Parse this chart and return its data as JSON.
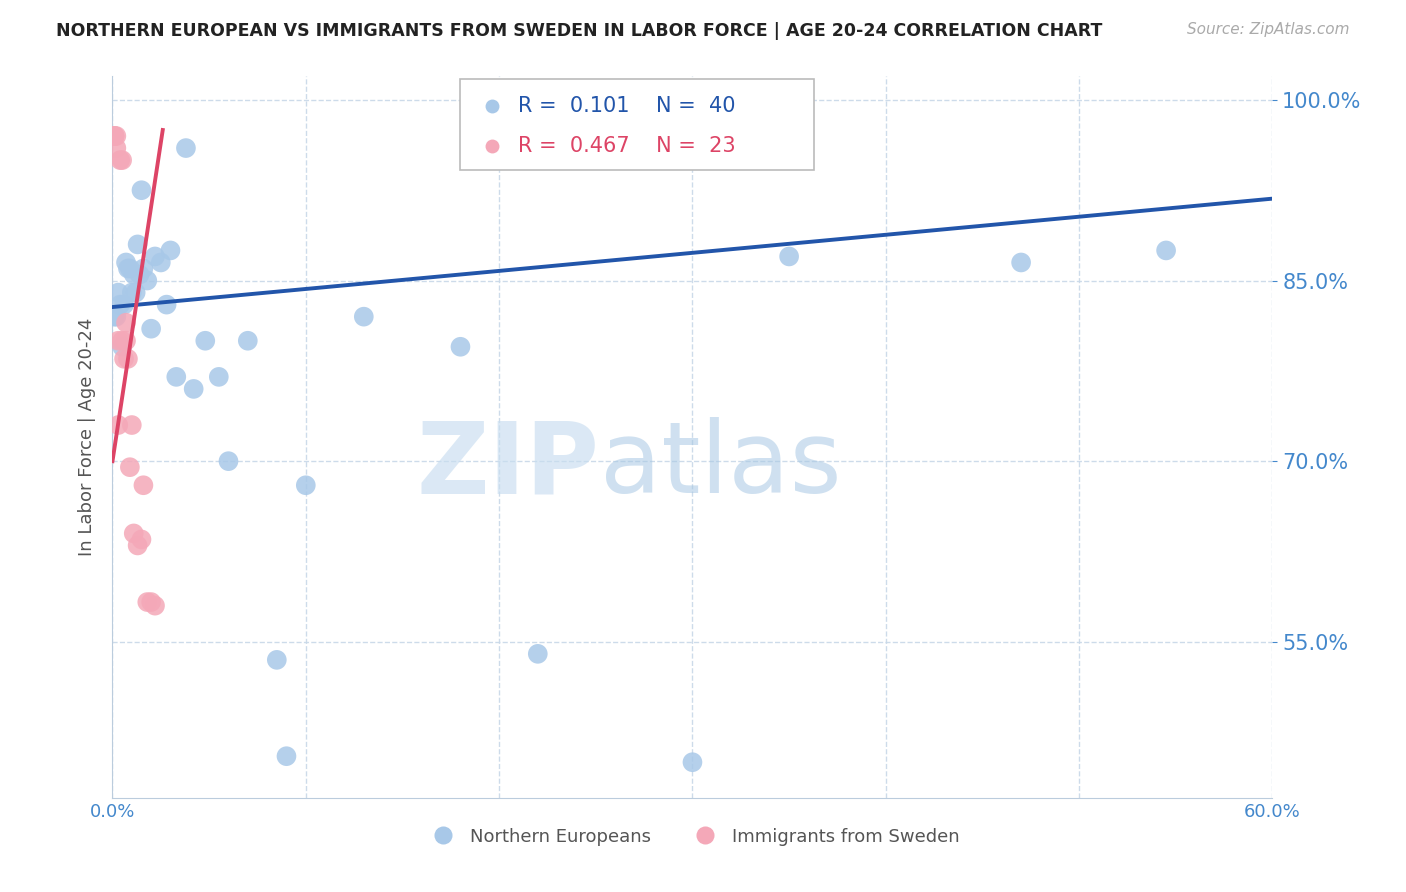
{
  "title": "NORTHERN EUROPEAN VS IMMIGRANTS FROM SWEDEN IN LABOR FORCE | AGE 20-24 CORRELATION CHART",
  "source": "Source: ZipAtlas.com",
  "ylabel": "In Labor Force | Age 20-24",
  "xlim": [
    0.0,
    0.6
  ],
  "ylim": [
    0.42,
    1.02
  ],
  "yticks": [
    0.55,
    0.7,
    0.85,
    1.0
  ],
  "xticks": [
    0.0,
    0.1,
    0.2,
    0.3,
    0.4,
    0.5,
    0.6
  ],
  "blue_R": 0.101,
  "blue_N": 40,
  "pink_R": 0.467,
  "pink_N": 23,
  "blue_color": "#a8c8e8",
  "pink_color": "#f4a8b8",
  "blue_line_color": "#2255aa",
  "pink_line_color": "#dd4466",
  "legend_blue_label": "Northern Europeans",
  "legend_pink_label": "Immigrants from Sweden",
  "watermark_zip": "ZIP",
  "watermark_atlas": "atlas",
  "title_color": "#222222",
  "axis_color": "#4488cc",
  "grid_color": "#c8d8e8",
  "blue_x": [
    0.001,
    0.002,
    0.003,
    0.004,
    0.005,
    0.006,
    0.007,
    0.008,
    0.009,
    0.01,
    0.011,
    0.012,
    0.013,
    0.014,
    0.015,
    0.016,
    0.018,
    0.02,
    0.022,
    0.025,
    0.028,
    0.03,
    0.033,
    0.038,
    0.042,
    0.048,
    0.055,
    0.06,
    0.07,
    0.085,
    0.09,
    0.1,
    0.13,
    0.18,
    0.2,
    0.22,
    0.3,
    0.35,
    0.47,
    0.545
  ],
  "blue_y": [
    0.82,
    0.82,
    0.84,
    0.83,
    0.795,
    0.83,
    0.865,
    0.86,
    0.86,
    0.84,
    0.855,
    0.84,
    0.88,
    0.855,
    0.925,
    0.86,
    0.85,
    0.81,
    0.87,
    0.865,
    0.83,
    0.875,
    0.77,
    0.96,
    0.76,
    0.8,
    0.77,
    0.7,
    0.8,
    0.535,
    0.455,
    0.68,
    0.82,
    0.795,
    0.99,
    0.54,
    0.45,
    0.87,
    0.865,
    0.875
  ],
  "pink_x": [
    0.001,
    0.001,
    0.001,
    0.002,
    0.002,
    0.003,
    0.003,
    0.004,
    0.005,
    0.005,
    0.006,
    0.007,
    0.007,
    0.008,
    0.009,
    0.01,
    0.011,
    0.013,
    0.015,
    0.016,
    0.018,
    0.02,
    0.022
  ],
  "pink_y": [
    0.97,
    0.97,
    0.97,
    0.97,
    0.96,
    0.8,
    0.73,
    0.95,
    0.95,
    0.8,
    0.785,
    0.815,
    0.8,
    0.785,
    0.695,
    0.73,
    0.64,
    0.63,
    0.635,
    0.68,
    0.583,
    0.583,
    0.58
  ],
  "blue_trend_x": [
    0.0,
    0.6
  ],
  "blue_trend_y": [
    0.828,
    0.918
  ],
  "pink_trend_x": [
    0.0,
    0.026
  ],
  "pink_trend_y": [
    0.7,
    0.975
  ]
}
